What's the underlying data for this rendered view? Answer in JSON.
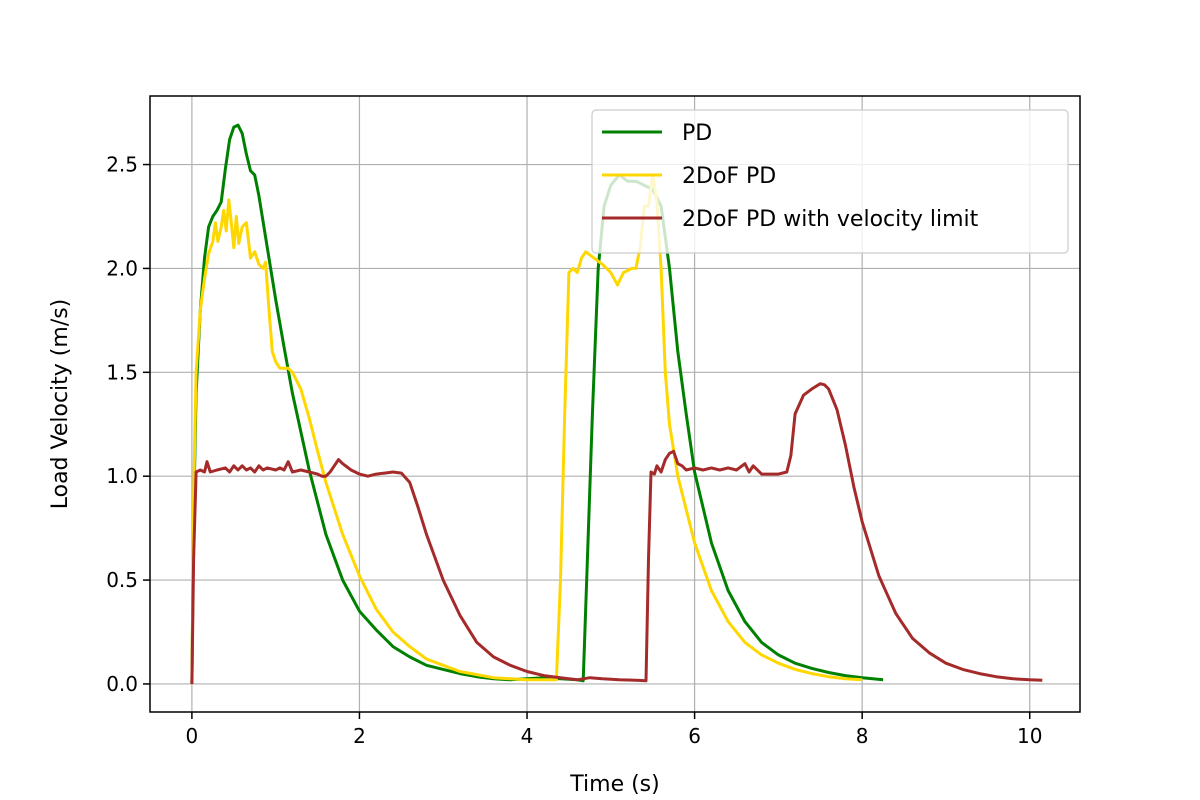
{
  "chart_data": {
    "type": "line",
    "title": "",
    "xlabel": "Time (s)",
    "ylabel": "Load Velocity (m/s)",
    "xlim": [
      -0.5,
      10.6
    ],
    "ylim": [
      -0.135,
      2.83
    ],
    "xticks": [
      0,
      2,
      4,
      6,
      8,
      10
    ],
    "xtick_labels": [
      "0",
      "2",
      "4",
      "6",
      "8",
      "10"
    ],
    "yticks": [
      0.0,
      0.5,
      1.0,
      1.5,
      2.0,
      2.5
    ],
    "ytick_labels": [
      "0.0",
      "0.5",
      "1.0",
      "1.5",
      "2.0",
      "2.5"
    ],
    "grid": true,
    "legend_position": "top-right",
    "series": [
      {
        "name": "PD",
        "color": "#008000",
        "points": [
          [
            0,
            0
          ],
          [
            0.02,
            0.8
          ],
          [
            0.05,
            1.4
          ],
          [
            0.1,
            1.8
          ],
          [
            0.15,
            2.05
          ],
          [
            0.2,
            2.2
          ],
          [
            0.25,
            2.25
          ],
          [
            0.3,
            2.28
          ],
          [
            0.35,
            2.32
          ],
          [
            0.4,
            2.48
          ],
          [
            0.45,
            2.62
          ],
          [
            0.5,
            2.68
          ],
          [
            0.55,
            2.69
          ],
          [
            0.6,
            2.65
          ],
          [
            0.65,
            2.55
          ],
          [
            0.7,
            2.47
          ],
          [
            0.75,
            2.45
          ],
          [
            0.8,
            2.35
          ],
          [
            0.9,
            2.1
          ],
          [
            1.0,
            1.85
          ],
          [
            1.1,
            1.62
          ],
          [
            1.2,
            1.4
          ],
          [
            1.4,
            1.03
          ],
          [
            1.6,
            0.72
          ],
          [
            1.8,
            0.5
          ],
          [
            2.0,
            0.35
          ],
          [
            2.2,
            0.26
          ],
          [
            2.4,
            0.18
          ],
          [
            2.6,
            0.13
          ],
          [
            2.8,
            0.09
          ],
          [
            3.0,
            0.07
          ],
          [
            3.2,
            0.05
          ],
          [
            3.4,
            0.035
          ],
          [
            3.6,
            0.025
          ],
          [
            3.8,
            0.02
          ],
          [
            4.0,
            0.025
          ],
          [
            4.2,
            0.03
          ],
          [
            4.4,
            0.025
          ],
          [
            4.6,
            0.02
          ],
          [
            4.67,
            0.015
          ],
          [
            4.72,
            0.6
          ],
          [
            4.78,
            1.3
          ],
          [
            4.85,
            2.0
          ],
          [
            4.92,
            2.3
          ],
          [
            5.0,
            2.4
          ],
          [
            5.1,
            2.45
          ],
          [
            5.2,
            2.42
          ],
          [
            5.3,
            2.42
          ],
          [
            5.4,
            2.4
          ],
          [
            5.5,
            2.38
          ],
          [
            5.6,
            2.3
          ],
          [
            5.7,
            2.0
          ],
          [
            5.8,
            1.6
          ],
          [
            5.9,
            1.3
          ],
          [
            6.0,
            1.02
          ],
          [
            6.2,
            0.68
          ],
          [
            6.4,
            0.45
          ],
          [
            6.6,
            0.3
          ],
          [
            6.8,
            0.2
          ],
          [
            7.0,
            0.14
          ],
          [
            7.2,
            0.1
          ],
          [
            7.4,
            0.075
          ],
          [
            7.6,
            0.055
          ],
          [
            7.8,
            0.04
          ],
          [
            8.0,
            0.03
          ],
          [
            8.25,
            0.02
          ]
        ]
      },
      {
        "name": "2DoF PD",
        "color": "#ffd700",
        "points": [
          [
            0,
            0
          ],
          [
            0.02,
            0.9
          ],
          [
            0.05,
            1.5
          ],
          [
            0.1,
            1.8
          ],
          [
            0.15,
            1.95
          ],
          [
            0.2,
            2.07
          ],
          [
            0.25,
            2.13
          ],
          [
            0.28,
            2.22
          ],
          [
            0.31,
            2.13
          ],
          [
            0.35,
            2.2
          ],
          [
            0.38,
            2.28
          ],
          [
            0.41,
            2.18
          ],
          [
            0.44,
            2.33
          ],
          [
            0.47,
            2.22
          ],
          [
            0.5,
            2.1
          ],
          [
            0.53,
            2.25
          ],
          [
            0.56,
            2.12
          ],
          [
            0.6,
            2.2
          ],
          [
            0.65,
            2.22
          ],
          [
            0.7,
            2.05
          ],
          [
            0.75,
            2.08
          ],
          [
            0.8,
            2.02
          ],
          [
            0.85,
            2.0
          ],
          [
            0.88,
            2.03
          ],
          [
            0.92,
            1.8
          ],
          [
            0.96,
            1.6
          ],
          [
            1.0,
            1.55
          ],
          [
            1.05,
            1.52
          ],
          [
            1.1,
            1.52
          ],
          [
            1.15,
            1.52
          ],
          [
            1.2,
            1.5
          ],
          [
            1.3,
            1.42
          ],
          [
            1.4,
            1.28
          ],
          [
            1.5,
            1.12
          ],
          [
            1.6,
            0.97
          ],
          [
            1.8,
            0.72
          ],
          [
            2.0,
            0.52
          ],
          [
            2.2,
            0.36
          ],
          [
            2.4,
            0.25
          ],
          [
            2.6,
            0.18
          ],
          [
            2.8,
            0.12
          ],
          [
            3.0,
            0.09
          ],
          [
            3.2,
            0.06
          ],
          [
            3.4,
            0.045
          ],
          [
            3.6,
            0.03
          ],
          [
            3.8,
            0.025
          ],
          [
            4.0,
            0.02
          ],
          [
            4.2,
            0.02
          ],
          [
            4.35,
            0.02
          ],
          [
            4.4,
            0.5
          ],
          [
            4.45,
            1.3
          ],
          [
            4.5,
            1.98
          ],
          [
            4.55,
            2.0
          ],
          [
            4.6,
            1.98
          ],
          [
            4.65,
            2.05
          ],
          [
            4.7,
            2.08
          ],
          [
            4.8,
            2.05
          ],
          [
            4.9,
            2.02
          ],
          [
            5.0,
            1.98
          ],
          [
            5.08,
            1.92
          ],
          [
            5.15,
            1.98
          ],
          [
            5.25,
            2.0
          ],
          [
            5.3,
            2.0
          ],
          [
            5.35,
            2.1
          ],
          [
            5.4,
            2.3
          ],
          [
            5.45,
            2.3
          ],
          [
            5.5,
            2.45
          ],
          [
            5.55,
            2.32
          ],
          [
            5.6,
            2.0
          ],
          [
            5.65,
            1.5
          ],
          [
            5.7,
            1.25
          ],
          [
            5.8,
            1.0
          ],
          [
            6.0,
            0.68
          ],
          [
            6.2,
            0.45
          ],
          [
            6.4,
            0.3
          ],
          [
            6.6,
            0.2
          ],
          [
            6.8,
            0.14
          ],
          [
            7.0,
            0.1
          ],
          [
            7.2,
            0.07
          ],
          [
            7.4,
            0.05
          ],
          [
            7.6,
            0.035
          ],
          [
            7.8,
            0.025
          ],
          [
            8.0,
            0.02
          ]
        ]
      },
      {
        "name": "2DoF PD with velocity limit",
        "color": "#a52a2a",
        "points": [
          [
            0,
            0
          ],
          [
            0.02,
            0.6
          ],
          [
            0.05,
            1.02
          ],
          [
            0.1,
            1.03
          ],
          [
            0.15,
            1.02
          ],
          [
            0.18,
            1.07
          ],
          [
            0.22,
            1.02
          ],
          [
            0.3,
            1.03
          ],
          [
            0.4,
            1.04
          ],
          [
            0.45,
            1.02
          ],
          [
            0.5,
            1.05
          ],
          [
            0.55,
            1.03
          ],
          [
            0.6,
            1.05
          ],
          [
            0.65,
            1.03
          ],
          [
            0.7,
            1.04
          ],
          [
            0.75,
            1.02
          ],
          [
            0.8,
            1.05
          ],
          [
            0.85,
            1.03
          ],
          [
            0.9,
            1.04
          ],
          [
            1.0,
            1.03
          ],
          [
            1.05,
            1.04
          ],
          [
            1.1,
            1.03
          ],
          [
            1.15,
            1.07
          ],
          [
            1.2,
            1.02
          ],
          [
            1.3,
            1.03
          ],
          [
            1.4,
            1.02
          ],
          [
            1.5,
            1.01
          ],
          [
            1.55,
            1.0
          ],
          [
            1.6,
            1.0
          ],
          [
            1.65,
            1.02
          ],
          [
            1.7,
            1.05
          ],
          [
            1.75,
            1.08
          ],
          [
            1.8,
            1.06
          ],
          [
            1.9,
            1.03
          ],
          [
            2.0,
            1.01
          ],
          [
            2.1,
            1.0
          ],
          [
            2.2,
            1.01
          ],
          [
            2.3,
            1.015
          ],
          [
            2.4,
            1.02
          ],
          [
            2.5,
            1.015
          ],
          [
            2.6,
            0.97
          ],
          [
            2.7,
            0.85
          ],
          [
            2.8,
            0.72
          ],
          [
            3.0,
            0.5
          ],
          [
            3.2,
            0.33
          ],
          [
            3.4,
            0.2
          ],
          [
            3.6,
            0.13
          ],
          [
            3.8,
            0.09
          ],
          [
            4.0,
            0.06
          ],
          [
            4.2,
            0.04
          ],
          [
            4.4,
            0.03
          ],
          [
            4.6,
            0.02
          ],
          [
            4.75,
            0.03
          ],
          [
            4.9,
            0.025
          ],
          [
            5.1,
            0.02
          ],
          [
            5.3,
            0.018
          ],
          [
            5.42,
            0.015
          ],
          [
            5.45,
            0.6
          ],
          [
            5.48,
            1.02
          ],
          [
            5.52,
            1.01
          ],
          [
            5.55,
            1.05
          ],
          [
            5.6,
            1.02
          ],
          [
            5.65,
            1.08
          ],
          [
            5.7,
            1.11
          ],
          [
            5.75,
            1.12
          ],
          [
            5.8,
            1.06
          ],
          [
            5.85,
            1.05
          ],
          [
            5.9,
            1.03
          ],
          [
            6.0,
            1.04
          ],
          [
            6.1,
            1.03
          ],
          [
            6.2,
            1.04
          ],
          [
            6.3,
            1.03
          ],
          [
            6.4,
            1.04
          ],
          [
            6.5,
            1.03
          ],
          [
            6.6,
            1.06
          ],
          [
            6.65,
            1.02
          ],
          [
            6.7,
            1.05
          ],
          [
            6.8,
            1.01
          ],
          [
            6.9,
            1.01
          ],
          [
            7.0,
            1.01
          ],
          [
            7.1,
            1.02
          ],
          [
            7.15,
            1.1
          ],
          [
            7.2,
            1.3
          ],
          [
            7.3,
            1.39
          ],
          [
            7.4,
            1.42
          ],
          [
            7.5,
            1.445
          ],
          [
            7.55,
            1.44
          ],
          [
            7.6,
            1.42
          ],
          [
            7.7,
            1.32
          ],
          [
            7.8,
            1.15
          ],
          [
            7.9,
            0.95
          ],
          [
            8.0,
            0.78
          ],
          [
            8.2,
            0.52
          ],
          [
            8.4,
            0.34
          ],
          [
            8.6,
            0.22
          ],
          [
            8.8,
            0.15
          ],
          [
            9.0,
            0.1
          ],
          [
            9.2,
            0.07
          ],
          [
            9.4,
            0.05
          ],
          [
            9.6,
            0.035
          ],
          [
            9.8,
            0.025
          ],
          [
            10.0,
            0.02
          ],
          [
            10.15,
            0.018
          ]
        ]
      }
    ]
  }
}
